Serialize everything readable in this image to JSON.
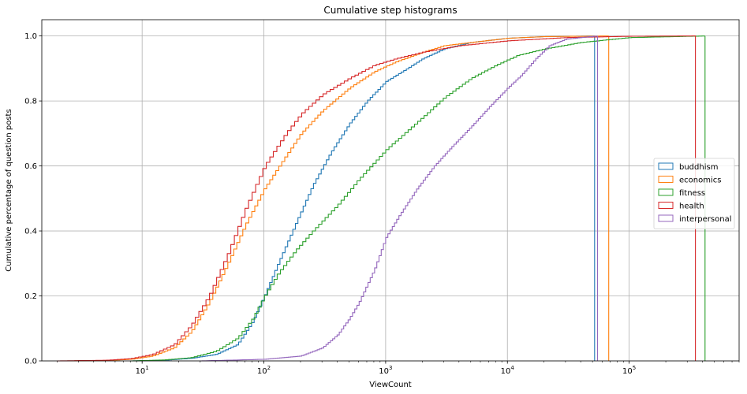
{
  "chart_data": {
    "type": "line",
    "title": "Cumulative step histograms",
    "xlabel": "ViewCount",
    "ylabel": "Cumulative percentage of question posts",
    "xscale": "log",
    "xlim": [
      1.5,
      800000
    ],
    "ylim": [
      0,
      1.05
    ],
    "xticks": [
      {
        "value": 10,
        "base": "10",
        "exp": "1"
      },
      {
        "value": 100,
        "base": "10",
        "exp": "2"
      },
      {
        "value": 1000,
        "base": "10",
        "exp": "3"
      },
      {
        "value": 10000,
        "base": "10",
        "exp": "4"
      },
      {
        "value": 100000,
        "base": "10",
        "exp": "5"
      }
    ],
    "yticks": [
      "0.0",
      "0.2",
      "0.4",
      "0.6",
      "0.8",
      "1.0"
    ],
    "grid": true,
    "legend_position": "center-right",
    "series": [
      {
        "name": "buddhism",
        "color": "#1f77b4",
        "max_x": 52000,
        "points": [
          [
            8,
            0
          ],
          [
            15,
            0.002
          ],
          [
            25,
            0.008
          ],
          [
            40,
            0.02
          ],
          [
            60,
            0.05
          ],
          [
            80,
            0.12
          ],
          [
            100,
            0.2
          ],
          [
            130,
            0.3
          ],
          [
            180,
            0.42
          ],
          [
            250,
            0.54
          ],
          [
            350,
            0.64
          ],
          [
            500,
            0.73
          ],
          [
            700,
            0.8
          ],
          [
            1000,
            0.86
          ],
          [
            1500,
            0.9
          ],
          [
            2000,
            0.93
          ],
          [
            3000,
            0.96
          ],
          [
            5000,
            0.98
          ],
          [
            10000,
            0.993
          ],
          [
            20000,
            0.998
          ],
          [
            52000,
            1.0
          ]
        ]
      },
      {
        "name": "economics",
        "color": "#ff7f0e",
        "max_x": 68000,
        "points": [
          [
            2.5,
            0
          ],
          [
            5,
            0.001
          ],
          [
            8,
            0.005
          ],
          [
            12,
            0.015
          ],
          [
            18,
            0.04
          ],
          [
            25,
            0.09
          ],
          [
            35,
            0.18
          ],
          [
            50,
            0.3
          ],
          [
            70,
            0.42
          ],
          [
            100,
            0.53
          ],
          [
            150,
            0.63
          ],
          [
            200,
            0.7
          ],
          [
            300,
            0.77
          ],
          [
            500,
            0.84
          ],
          [
            800,
            0.89
          ],
          [
            1200,
            0.92
          ],
          [
            2000,
            0.95
          ],
          [
            3000,
            0.97
          ],
          [
            5000,
            0.98
          ],
          [
            10000,
            0.993
          ],
          [
            20000,
            0.998
          ],
          [
            68000,
            1.0
          ]
        ]
      },
      {
        "name": "fitness",
        "color": "#2ca02c",
        "max_x": 420000,
        "points": [
          [
            8,
            0
          ],
          [
            15,
            0.003
          ],
          [
            25,
            0.01
          ],
          [
            40,
            0.03
          ],
          [
            60,
            0.07
          ],
          [
            80,
            0.13
          ],
          [
            100,
            0.2
          ],
          [
            130,
            0.27
          ],
          [
            180,
            0.34
          ],
          [
            250,
            0.4
          ],
          [
            400,
            0.48
          ],
          [
            600,
            0.56
          ],
          [
            1000,
            0.65
          ],
          [
            2000,
            0.75
          ],
          [
            3000,
            0.81
          ],
          [
            5000,
            0.87
          ],
          [
            8000,
            0.91
          ],
          [
            12000,
            0.94
          ],
          [
            20000,
            0.96
          ],
          [
            40000,
            0.98
          ],
          [
            100000,
            0.995
          ],
          [
            420000,
            1.0
          ]
        ]
      },
      {
        "name": "health",
        "color": "#d62728",
        "max_x": 350000,
        "points": [
          [
            2,
            0
          ],
          [
            5,
            0.002
          ],
          [
            8,
            0.007
          ],
          [
            12,
            0.02
          ],
          [
            18,
            0.05
          ],
          [
            25,
            0.11
          ],
          [
            35,
            0.2
          ],
          [
            50,
            0.33
          ],
          [
            70,
            0.47
          ],
          [
            100,
            0.6
          ],
          [
            150,
            0.7
          ],
          [
            200,
            0.76
          ],
          [
            300,
            0.82
          ],
          [
            500,
            0.87
          ],
          [
            800,
            0.91
          ],
          [
            1200,
            0.93
          ],
          [
            2000,
            0.95
          ],
          [
            4000,
            0.97
          ],
          [
            10000,
            0.985
          ],
          [
            30000,
            0.995
          ],
          [
            100000,
            0.999
          ],
          [
            350000,
            1.0
          ]
        ]
      },
      {
        "name": "interpersonal",
        "color": "#9467bd",
        "max_x": 55000,
        "points": [
          [
            30,
            0
          ],
          [
            100,
            0.005
          ],
          [
            200,
            0.015
          ],
          [
            300,
            0.04
          ],
          [
            400,
            0.08
          ],
          [
            500,
            0.13
          ],
          [
            600,
            0.18
          ],
          [
            800,
            0.28
          ],
          [
            1000,
            0.38
          ],
          [
            1300,
            0.45
          ],
          [
            1800,
            0.53
          ],
          [
            2500,
            0.6
          ],
          [
            3500,
            0.66
          ],
          [
            5000,
            0.72
          ],
          [
            7000,
            0.78
          ],
          [
            10000,
            0.84
          ],
          [
            13000,
            0.88
          ],
          [
            17000,
            0.93
          ],
          [
            22000,
            0.97
          ],
          [
            30000,
            0.99
          ],
          [
            45000,
            0.997
          ],
          [
            55000,
            1.0
          ]
        ]
      }
    ]
  }
}
